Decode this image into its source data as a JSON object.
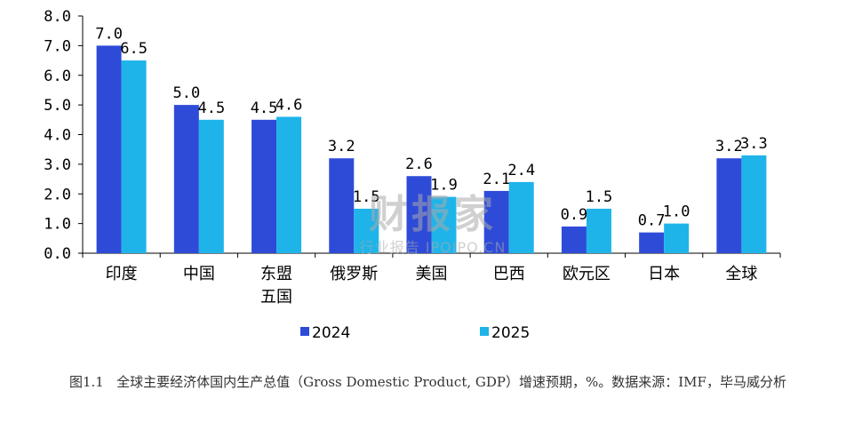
{
  "chart_data": {
    "type": "bar",
    "categories": [
      "印度",
      "中国",
      "东盟\n五国",
      "俄罗斯",
      "美国",
      "巴西",
      "欧元区",
      "日本",
      "全球"
    ],
    "series": [
      {
        "name": "2024",
        "color": "#2E4BD8",
        "values": [
          7.0,
          5.0,
          4.5,
          3.2,
          2.6,
          2.1,
          0.9,
          0.7,
          3.2
        ]
      },
      {
        "name": "2025",
        "color": "#1EB4EA",
        "values": [
          6.5,
          4.5,
          4.6,
          1.5,
          1.9,
          2.4,
          1.5,
          1.0,
          3.3
        ]
      }
    ],
    "y_ticks": [
      "0.0",
      "1.0",
      "2.0",
      "3.0",
      "4.0",
      "5.0",
      "6.0",
      "7.0",
      "8.0"
    ],
    "ylim": [
      0,
      8
    ],
    "grid": false,
    "legend_position": "bottom"
  },
  "caption": {
    "figure_no": "图1.1",
    "text": "全球主要经济体国内生产总值（Gross Domestic Product, GDP）增速预期，%。数据来源：IMF，毕马威分析"
  },
  "watermark": {
    "main": "财报家",
    "sub": "行业报告 IPOIPO.CN"
  }
}
